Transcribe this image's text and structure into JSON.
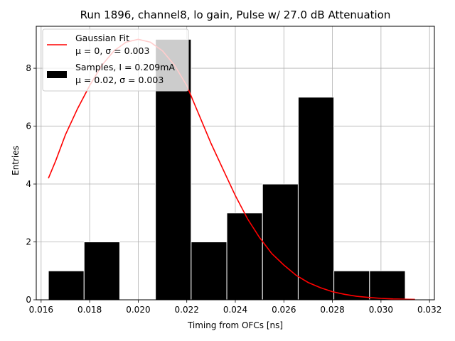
{
  "chart_data": {
    "type": "bar",
    "title": "Run 1896, channel8, lo gain, Pulse w/ 27.0 dB Attenuation",
    "xlabel": "Timing from OFCs [ns]",
    "ylabel": "Entries",
    "xlim": [
      0.0158,
      0.0322
    ],
    "ylim": [
      0,
      9.45
    ],
    "grid": true,
    "legend_position": "top-left",
    "x_ticks": [
      "0.016",
      "0.018",
      "0.020",
      "0.022",
      "0.024",
      "0.026",
      "0.028",
      "0.030",
      "0.032"
    ],
    "x_tick_values": [
      0.016,
      0.018,
      0.02,
      0.022,
      0.024,
      0.026,
      0.028,
      0.03,
      0.032
    ],
    "y_ticks": [
      "0",
      "2",
      "4",
      "6",
      "8"
    ],
    "y_tick_values": [
      0,
      2,
      4,
      6,
      8
    ],
    "histogram": {
      "bin_edges": [
        0.0163,
        0.01777,
        0.01924,
        0.02071,
        0.02218,
        0.02365,
        0.02512,
        0.02659,
        0.02806,
        0.02953,
        0.031
      ],
      "counts": [
        1,
        2,
        0,
        9,
        2,
        3,
        4,
        7,
        1,
        1
      ],
      "color": "#000000"
    },
    "fit_curve": {
      "color": "#ff0000",
      "x": [
        0.0163,
        0.0166,
        0.017,
        0.0175,
        0.018,
        0.0185,
        0.019,
        0.0195,
        0.02,
        0.0205,
        0.021,
        0.0215,
        0.022,
        0.0225,
        0.023,
        0.0235,
        0.024,
        0.0245,
        0.025,
        0.0255,
        0.026,
        0.0265,
        0.027,
        0.0275,
        0.028,
        0.0285,
        0.029,
        0.0295,
        0.03,
        0.0305,
        0.031,
        0.0314
      ],
      "y": [
        4.2,
        4.8,
        5.7,
        6.6,
        7.4,
        8.1,
        8.6,
        8.9,
        9.0,
        8.9,
        8.6,
        8.1,
        7.4,
        6.4,
        5.4,
        4.5,
        3.6,
        2.8,
        2.15,
        1.6,
        1.2,
        0.85,
        0.6,
        0.42,
        0.28,
        0.19,
        0.12,
        0.08,
        0.05,
        0.03,
        0.02,
        0.015
      ]
    },
    "legend": {
      "fit_label_1": "Gaussian Fit",
      "fit_label_2": "μ = 0, σ = 0.003",
      "hist_label_1": "Samples, I = 0.209mA",
      "hist_label_2": "μ = 0.02, σ = 0.003"
    }
  }
}
